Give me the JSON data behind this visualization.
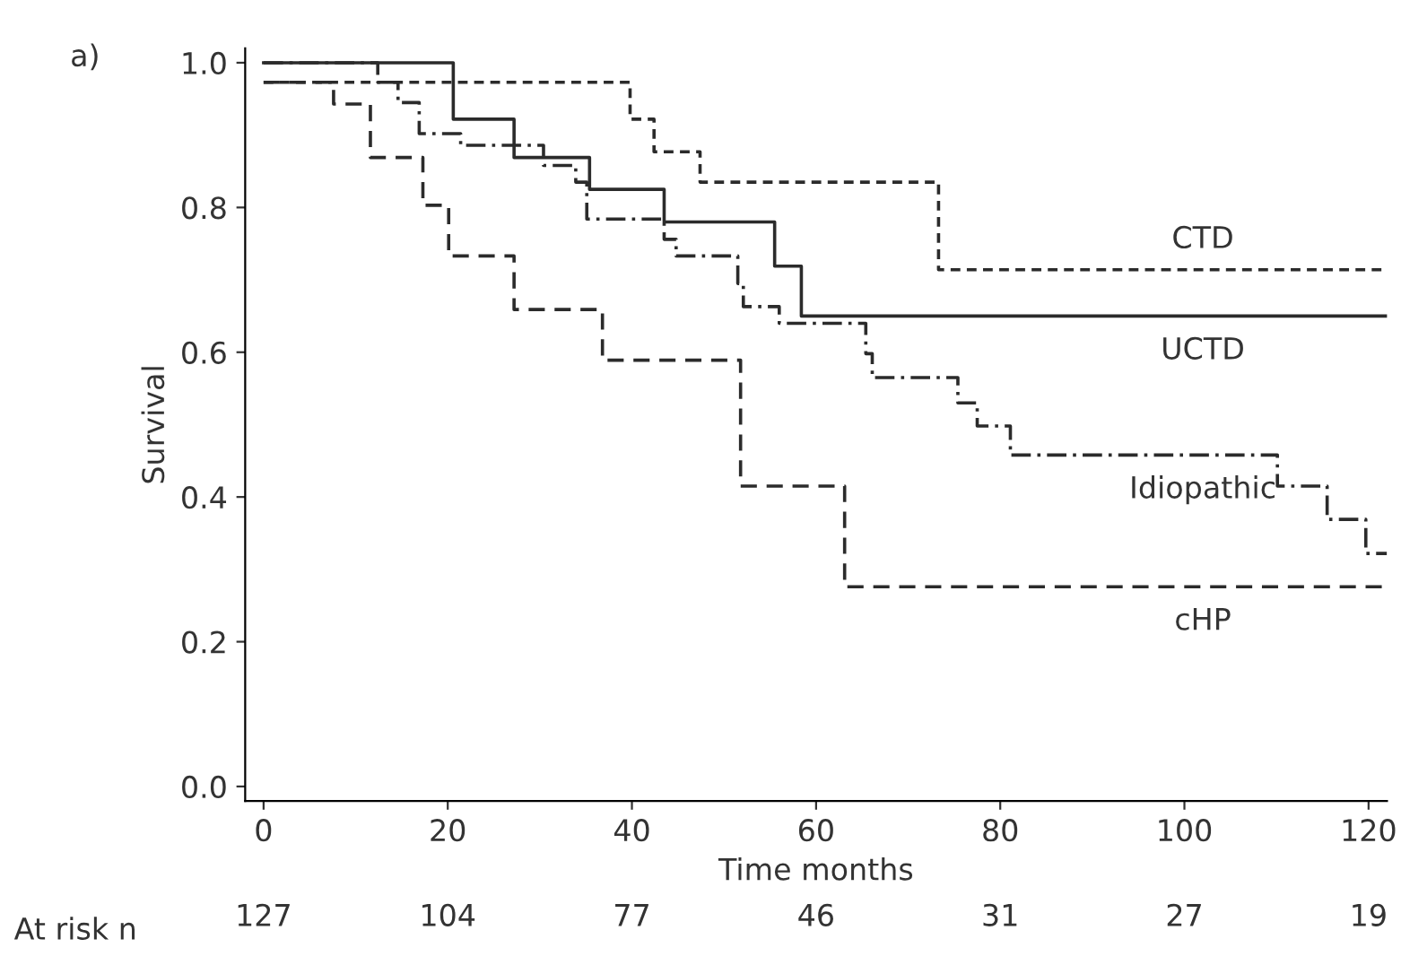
{
  "chart_data": {
    "type": "step",
    "xlabel": "Time months",
    "ylabel": "Survival",
    "xlim": [
      -2,
      122
    ],
    "ylim": [
      -0.02,
      1.02
    ],
    "xticks": [
      0,
      20,
      40,
      60,
      80,
      100,
      120
    ],
    "yticks": [
      {
        "value": 0,
        "label": "0.0"
      },
      {
        "value": 0.2,
        "label": "0.2"
      },
      {
        "value": 0.4,
        "label": "0.4"
      },
      {
        "value": 0.6,
        "label": "0.6"
      },
      {
        "value": 0.8,
        "label": "0.8"
      },
      {
        "value": 1,
        "label": "1.0"
      }
    ],
    "grid": false,
    "legend": false,
    "marker": "none",
    "series": [
      {
        "name": "CTD",
        "color": "#2b2b2b",
        "line_style": "dashed",
        "x": [
          0,
          39.8,
          42.4,
          47.4,
          73.3,
          122
        ],
        "values": [
          0.973,
          0.922,
          0.877,
          0.835,
          0.714,
          0.714
        ]
      },
      {
        "name": "UCTD",
        "color": "#2b2b2b",
        "line_style": "solid",
        "x": [
          0,
          20.6,
          27.2,
          35.4,
          43.5,
          55.5,
          58.4,
          122
        ],
        "values": [
          1.0,
          0.922,
          0.869,
          0.825,
          0.78,
          0.719,
          0.65,
          0.65
        ]
      },
      {
        "name": "Idiopathic",
        "color": "#2b2b2b",
        "line_style": "dashdot",
        "x": [
          0,
          12.4,
          14.6,
          16.9,
          21.4,
          30.4,
          33.9,
          35.1,
          43.5,
          44.8,
          51.5,
          52.1,
          56.0,
          65.4,
          66.1,
          75.4,
          77.5,
          81.1,
          110.1,
          115.5,
          119.7,
          122
        ],
        "values": [
          1.0,
          0.973,
          0.945,
          0.902,
          0.886,
          0.858,
          0.835,
          0.784,
          0.756,
          0.733,
          0.695,
          0.663,
          0.64,
          0.598,
          0.565,
          0.53,
          0.498,
          0.458,
          0.415,
          0.369,
          0.322,
          0.322
        ]
      },
      {
        "name": "cHP",
        "color": "#2b2b2b",
        "line_style": "dashed",
        "x": [
          0,
          7.6,
          11.6,
          17.3,
          20.1,
          27.2,
          36.8,
          51.8,
          63.1,
          122
        ],
        "values": [
          0.973,
          0.943,
          0.869,
          0.803,
          0.733,
          0.659,
          0.589,
          0.415,
          0.276,
          0.276
        ]
      }
    ],
    "annotations": [
      "a)",
      "At risk n",
      "127",
      "104",
      "77",
      "46",
      "31",
      "27",
      "19"
    ]
  }
}
